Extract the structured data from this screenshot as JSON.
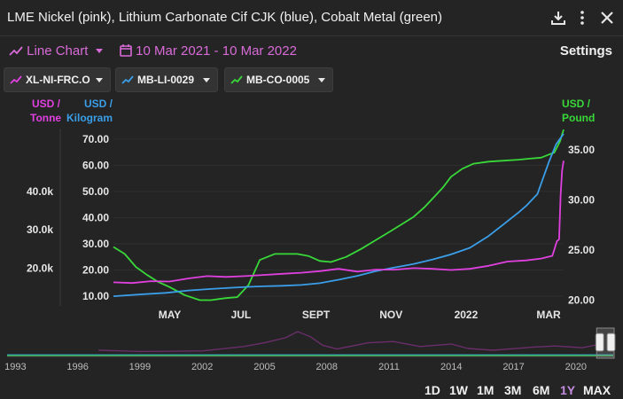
{
  "title": "LME Nickel (pink), Lithium Carbonate Cif CJK (blue), Cobalt Metal (green)",
  "icons": {
    "download": "download-icon",
    "menu": "more-vertical-icon",
    "close": "close-icon",
    "calendar": "calendar-icon"
  },
  "toolbar": {
    "chart_type": "Line Chart",
    "date_range": "10 Mar 2021 - 10 Mar 2022",
    "settings": "Settings"
  },
  "chips": [
    {
      "label": "XL-NI-FRC.O",
      "color": "#e040e0"
    },
    {
      "label": "MB-LI-0029",
      "color": "#3a9ee8"
    },
    {
      "label": "MB-CO-0005",
      "color": "#39d839"
    }
  ],
  "units": {
    "left_outer": [
      "USD /",
      "Tonne"
    ],
    "left_inner": [
      "USD /",
      "Kilogram"
    ],
    "right": [
      "USD /",
      "Pound"
    ]
  },
  "colors": {
    "nickel": "#e040e0",
    "lithium": "#3a9ee8",
    "cobalt": "#39d839",
    "background": "#242424",
    "active": "#c58be0"
  },
  "range_buttons": [
    "1D",
    "1W",
    "1M",
    "3M",
    "6M",
    "1Y",
    "MAX"
  ],
  "active_range": "1Y",
  "chart_data": {
    "type": "line",
    "x_ticks": [
      "MAY",
      "JUL",
      "SEPT",
      "NOV",
      "2022",
      "MAR"
    ],
    "x_range": [
      0,
      12
    ],
    "axes": {
      "lithium": {
        "ticks": [
          10,
          20,
          30,
          40,
          50,
          60,
          70
        ],
        "labels": [
          "10.00",
          "20.00",
          "30.00",
          "40.00",
          "50.00",
          "60.00",
          "70.00"
        ],
        "range": [
          7,
          74
        ]
      },
      "nickel": {
        "ticks": [
          20000,
          30000,
          40000
        ],
        "labels": [
          "20.0k",
          "30.0k",
          "40.0k"
        ],
        "range": [
          10600,
          56400
        ]
      },
      "cobalt": {
        "ticks": [
          20,
          25,
          30,
          35
        ],
        "labels": [
          "20.00",
          "25.00",
          "30.00",
          "35.00"
        ],
        "range": [
          19.6,
          37.1
        ]
      }
    },
    "series": [
      {
        "key": "cobalt",
        "x": [
          0,
          0.3,
          0.6,
          0.9,
          1.2,
          1.5,
          1.9,
          2.3,
          2.6,
          2.8,
          3.0,
          3.3,
          3.6,
          3.9,
          4.3,
          4.6,
          4.9,
          5.2,
          5.5,
          5.8,
          6.2,
          6.6,
          7.0,
          7.4,
          7.7,
          8.0,
          8.3,
          8.6,
          8.8,
          9.0,
          9.3,
          9.6,
          10.0,
          10.4,
          10.8,
          11.1,
          11.4,
          11.6,
          11.75,
          11.9,
          12.0
        ],
        "y": [
          25.3,
          24.6,
          23.3,
          22.5,
          21.8,
          21.3,
          20.5,
          20.0,
          20.0,
          20.1,
          20.2,
          20.3,
          21.5,
          24.0,
          24.6,
          24.6,
          24.6,
          24.4,
          23.9,
          23.8,
          24.3,
          25.1,
          26.0,
          26.9,
          27.6,
          28.3,
          29.3,
          30.5,
          31.3,
          32.3,
          33.1,
          33.6,
          33.8,
          33.9,
          34.0,
          34.1,
          34.2,
          34.5,
          34.7,
          35.8,
          37.0
        ]
      },
      {
        "key": "lithium",
        "x": [
          0,
          0.8,
          1.4,
          2.0,
          2.6,
          3.2,
          3.6,
          4.0,
          4.5,
          5.0,
          5.5,
          6.0,
          6.5,
          7.0,
          7.5,
          8.0,
          8.5,
          9.0,
          9.5,
          10.0,
          10.4,
          10.8,
          11.0,
          11.3,
          11.6,
          11.8,
          12.0
        ],
        "y": [
          10.0,
          10.8,
          11.3,
          12.2,
          12.8,
          13.3,
          13.6,
          13.8,
          14.0,
          14.3,
          15.0,
          16.3,
          17.8,
          19.6,
          21.0,
          22.3,
          24.0,
          26.0,
          28.5,
          33.0,
          37.5,
          42.0,
          44.5,
          49.0,
          61.0,
          68.0,
          72.0
        ]
      },
      {
        "key": "nickel",
        "x": [
          0,
          0.5,
          1.0,
          1.5,
          2.0,
          2.5,
          3.0,
          3.5,
          4.0,
          4.5,
          5.0,
          5.5,
          6.0,
          6.5,
          7.0,
          7.5,
          8.0,
          8.5,
          9.0,
          9.5,
          10.0,
          10.5,
          11.0,
          11.4,
          11.7,
          11.82,
          11.88,
          11.92,
          11.96,
          12.0
        ],
        "y": [
          16300,
          16100,
          16600,
          16500,
          17300,
          17900,
          17700,
          17900,
          18200,
          18500,
          18800,
          19200,
          19800,
          19100,
          19600,
          19600,
          20000,
          19800,
          19500,
          19800,
          20600,
          21700,
          22000,
          22500,
          23200,
          27000,
          27500,
          39000,
          45500,
          48000
        ]
      }
    ]
  },
  "navigator": {
    "x_ticks": [
      "1993",
      "1996",
      "1999",
      "2002",
      "2005",
      "2008",
      "2011",
      "2014",
      "2017",
      "2020"
    ],
    "x_range": [
      1992.6,
      2021.8
    ],
    "series": [
      {
        "key": "nickel",
        "x": [
          1997,
          1999,
          2002,
          2004,
          2005,
          2006,
          2006.6,
          2007.2,
          2007.8,
          2008.5,
          2010,
          2011.2,
          2012.5,
          2014,
          2014.8,
          2016,
          2018,
          2019,
          2020.3,
          2021.2
        ],
        "y": [
          0.25,
          0.2,
          0.22,
          0.4,
          0.55,
          0.75,
          1.0,
          0.8,
          0.45,
          0.3,
          0.55,
          0.6,
          0.4,
          0.5,
          0.32,
          0.25,
          0.38,
          0.42,
          0.35,
          0.5
        ]
      },
      {
        "key": "lithium",
        "x": [
          1992.6,
          2021.8
        ],
        "y": [
          0.06,
          0.06
        ]
      },
      {
        "key": "cobalt",
        "x": [
          1992.6,
          2021.8
        ],
        "y": [
          0.03,
          0.03
        ]
      }
    ],
    "window": [
      2021.0,
      2021.9
    ]
  }
}
